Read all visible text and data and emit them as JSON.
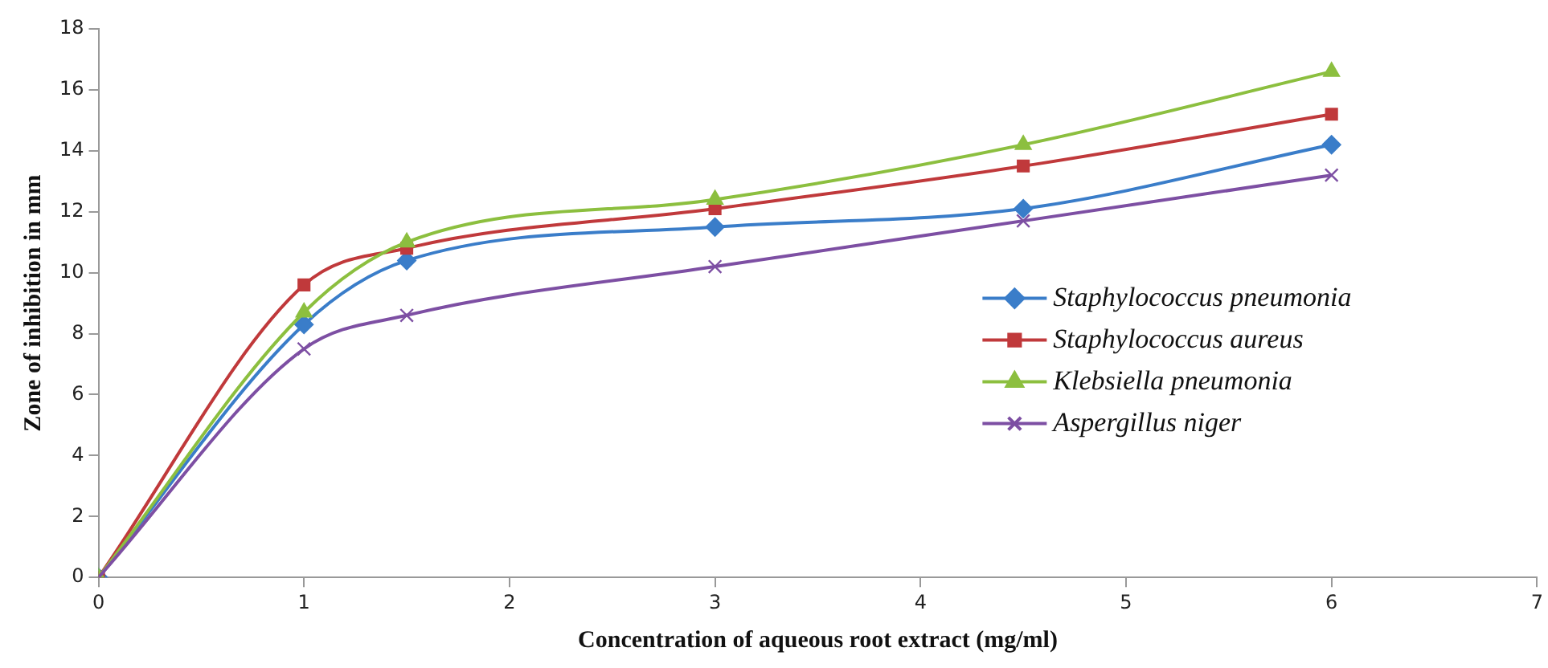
{
  "chart_data": {
    "type": "line",
    "xlabel": "Concentration of aqueous root extract (mg/ml)",
    "ylabel": "Zone of inhibition in mm",
    "x": [
      0,
      1,
      1.5,
      3,
      4.5,
      6
    ],
    "series": [
      {
        "name": "Staphylococcus pneumonia",
        "color": "#3a7dc9",
        "marker": "diamond",
        "values": [
          0,
          8.3,
          10.4,
          11.5,
          12.1,
          14.2
        ]
      },
      {
        "name": "Staphylococcus aureus",
        "color": "#c0393b",
        "marker": "square",
        "values": [
          0,
          9.6,
          10.8,
          12.1,
          13.5,
          15.2
        ]
      },
      {
        "name": "Klebsiella pneumonia",
        "color": "#8cbf3f",
        "marker": "triangle",
        "values": [
          0,
          8.7,
          11.0,
          12.4,
          14.2,
          16.6
        ]
      },
      {
        "name": "Aspergillus niger",
        "color": "#7d4fa3",
        "marker": "cross",
        "values": [
          0,
          7.5,
          8.6,
          10.2,
          11.7,
          13.2
        ]
      }
    ],
    "xlim": [
      0,
      7
    ],
    "xticks": [
      0,
      1,
      2,
      3,
      4,
      5,
      6,
      7
    ],
    "ylim": [
      0,
      18
    ],
    "yticks": [
      0,
      2,
      4,
      6,
      8,
      10,
      12,
      14,
      16,
      18
    ],
    "grid": false,
    "legend": "right",
    "line_style": "solid"
  }
}
